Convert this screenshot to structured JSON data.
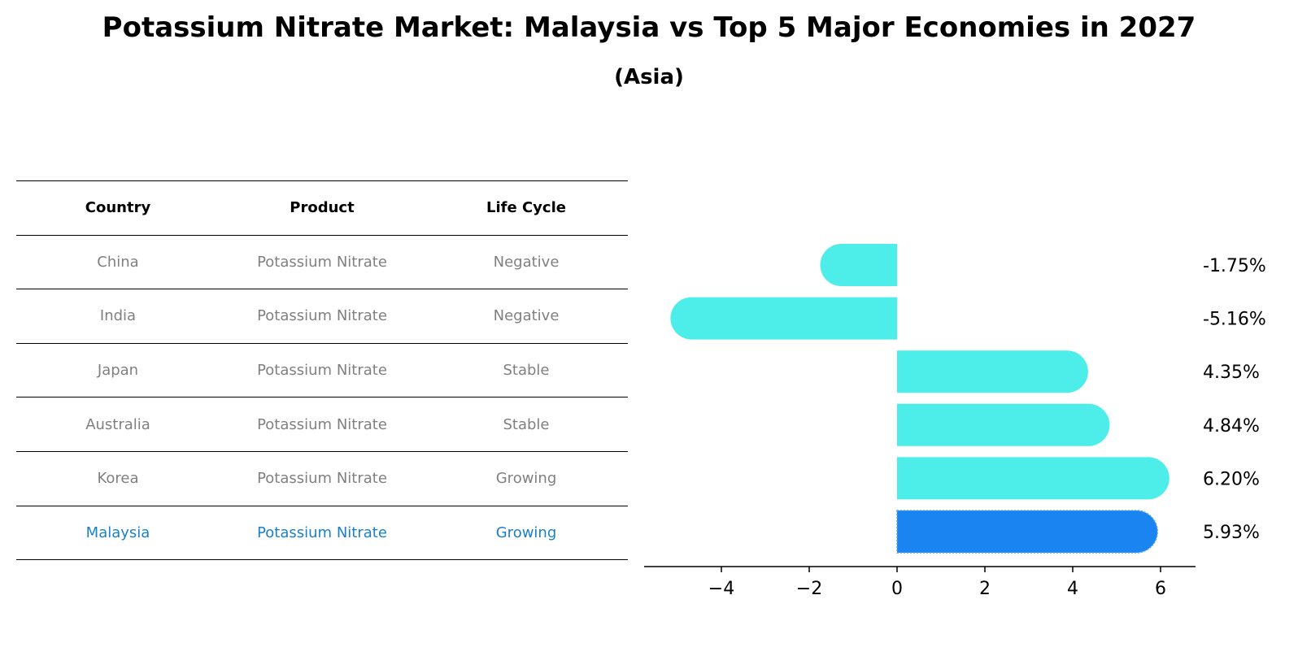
{
  "title": "Potassium Nitrate Market: Malaysia vs Top 5 Major Economies in 2027",
  "subtitle": "(Asia)",
  "table": {
    "headers": [
      "Country",
      "Product",
      "Life Cycle"
    ],
    "rows": [
      {
        "country": "China",
        "product": "Potassium Nitrate",
        "life_cycle": "Negative"
      },
      {
        "country": "India",
        "product": "Potassium Nitrate",
        "life_cycle": "Negative"
      },
      {
        "country": "Japan",
        "product": "Potassium Nitrate",
        "life_cycle": "Stable"
      },
      {
        "country": "Australia",
        "product": "Potassium Nitrate",
        "life_cycle": "Stable"
      },
      {
        "country": "Korea",
        "product": "Potassium Nitrate",
        "life_cycle": "Growing"
      },
      {
        "country": "Malaysia",
        "product": "Potassium Nitrate",
        "life_cycle": "Growing"
      }
    ]
  },
  "colors": {
    "bar": "#4dede9",
    "highlight_bar": "#1a85f0",
    "text_gray": "#808080",
    "text_highlight": "#1a80c9"
  },
  "chart_data": {
    "type": "bar",
    "orientation": "horizontal",
    "title": "Potassium Nitrate Market: Malaysia vs Top 5 Major Economies in 2027",
    "subtitle": "(Asia)",
    "categories": [
      "China",
      "India",
      "Japan",
      "Australia",
      "Korea",
      "Malaysia"
    ],
    "values": [
      -1.75,
      -5.16,
      4.35,
      4.84,
      6.2,
      5.93
    ],
    "value_labels": [
      "-1.75%",
      "-5.16%",
      "4.35%",
      "4.84%",
      "6.20%",
      "5.93%"
    ],
    "highlight": "Malaysia",
    "xlim": [
      -5.8,
      6.8
    ],
    "xticks": [
      -4,
      -2,
      0,
      2,
      4,
      6
    ],
    "xtick_labels": [
      "−4",
      "−2",
      "0",
      "2",
      "4",
      "6"
    ],
    "xlabel": "",
    "ylabel": "",
    "grid": false
  }
}
